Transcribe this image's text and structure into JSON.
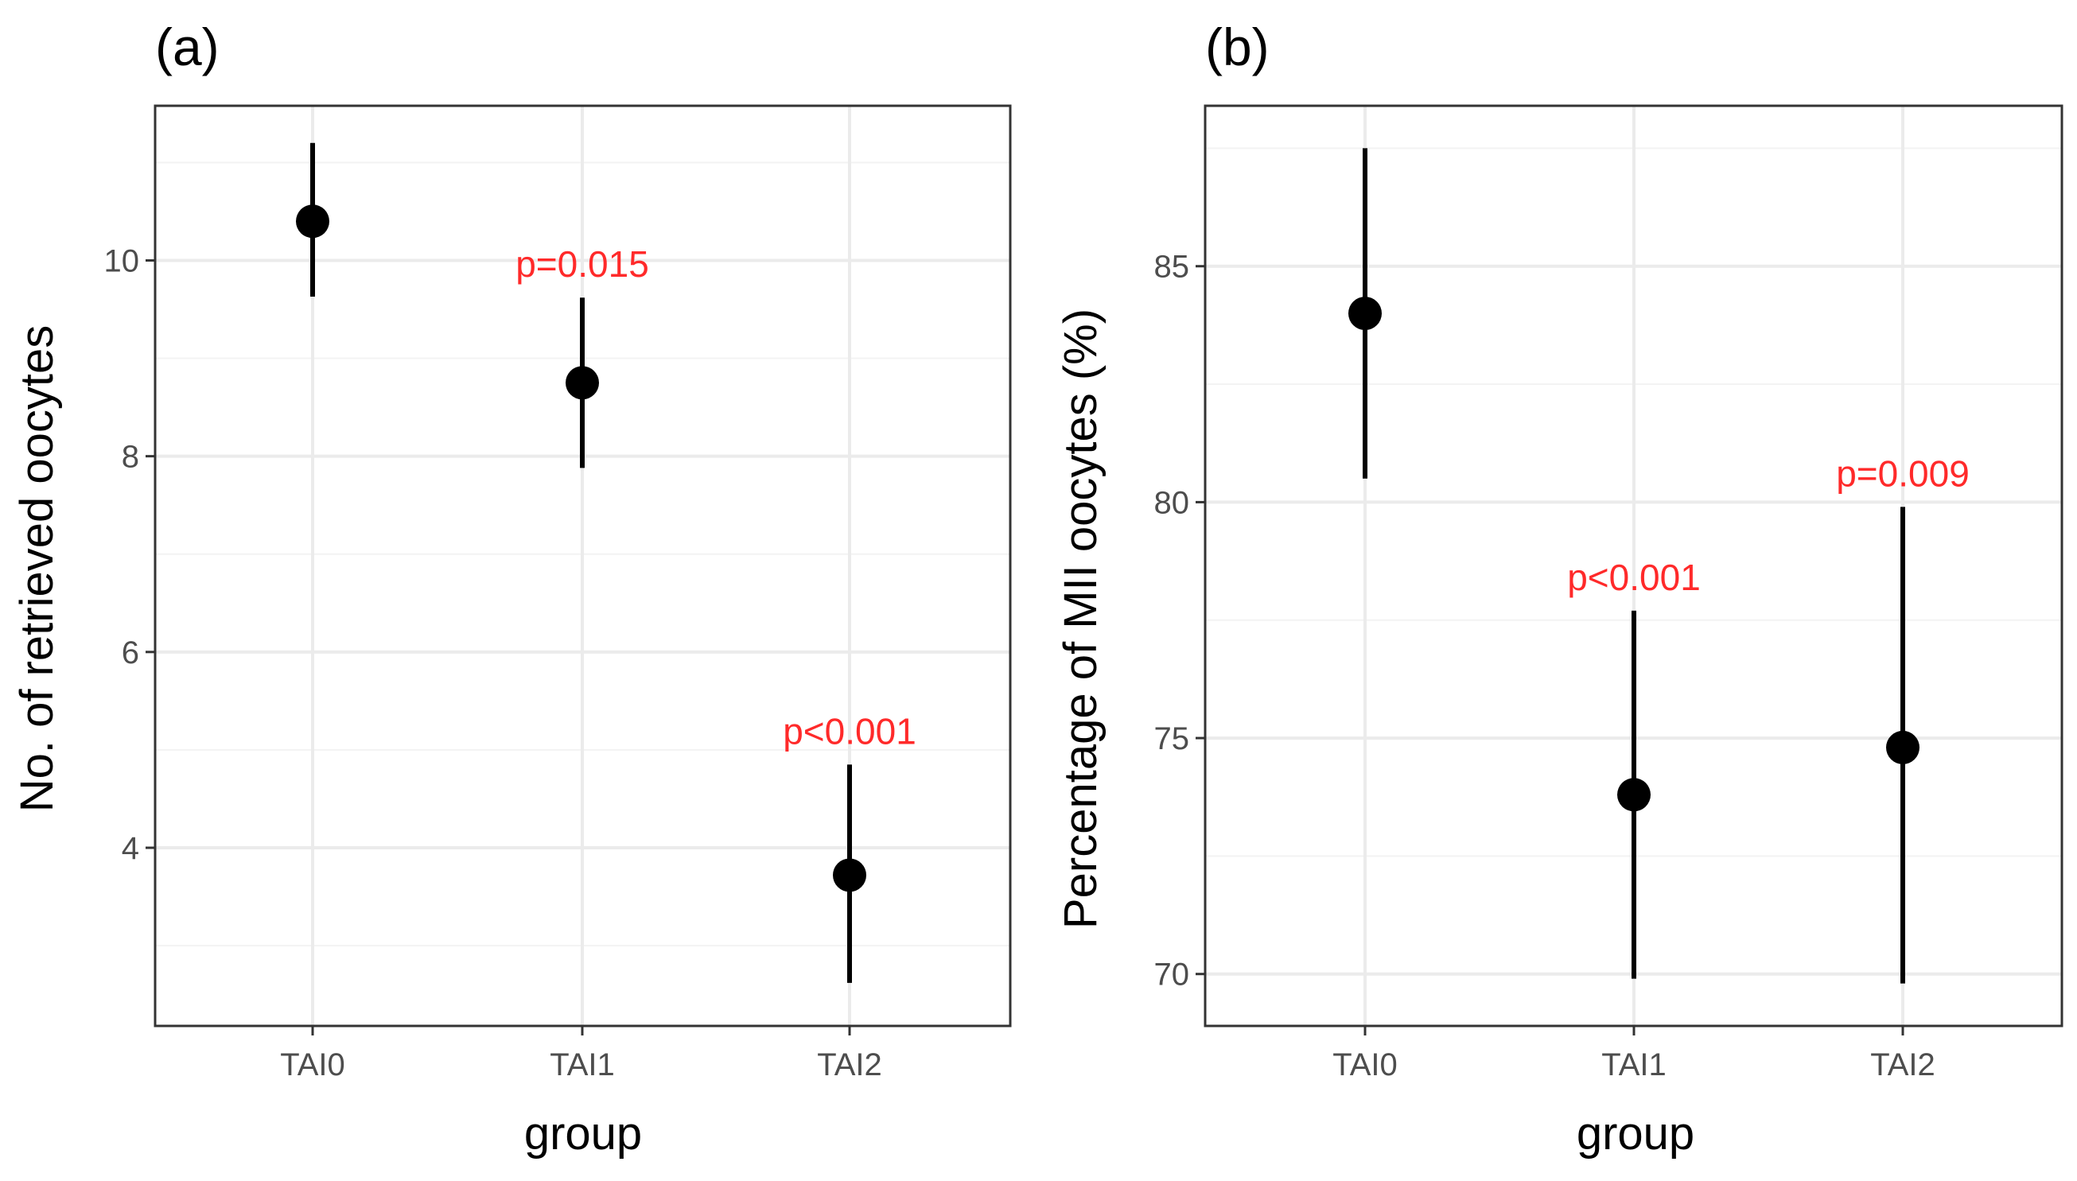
{
  "colors": {
    "annotation": "#ff2a2a",
    "point": "#000000",
    "grid": "#ebebeb",
    "frame": "#333333"
  },
  "chart_data": [
    {
      "type": "scatter",
      "panel_label": "(a)",
      "xlabel": "group",
      "ylabel": "No. of retrieved oocytes",
      "categories": [
        "TAI0",
        "TAI1",
        "TAI2"
      ],
      "values": [
        10.4,
        8.75,
        3.72
      ],
      "lower": [
        9.63,
        7.88,
        2.62
      ],
      "upper": [
        11.2,
        9.62,
        4.85
      ],
      "annotations": [
        "",
        "p=0.015",
        "p<0.001"
      ],
      "yticks": [
        4,
        6,
        8,
        10
      ],
      "ylim": [
        2.18,
        11.58
      ],
      "grid": true
    },
    {
      "type": "scatter",
      "panel_label": "(b)",
      "xlabel": "group",
      "ylabel": "Percentage of MII oocytes (%)",
      "categories": [
        "TAI0",
        "TAI1",
        "TAI2"
      ],
      "values": [
        84.0,
        73.8,
        74.8
      ],
      "lower": [
        80.5,
        69.9,
        69.8
      ],
      "upper": [
        87.5,
        77.7,
        79.9
      ],
      "annotations": [
        "",
        "p<0.001",
        "p=0.009"
      ],
      "yticks": [
        70,
        75,
        80,
        85
      ],
      "ylim": [
        68.9,
        88.4
      ],
      "grid": true
    }
  ]
}
